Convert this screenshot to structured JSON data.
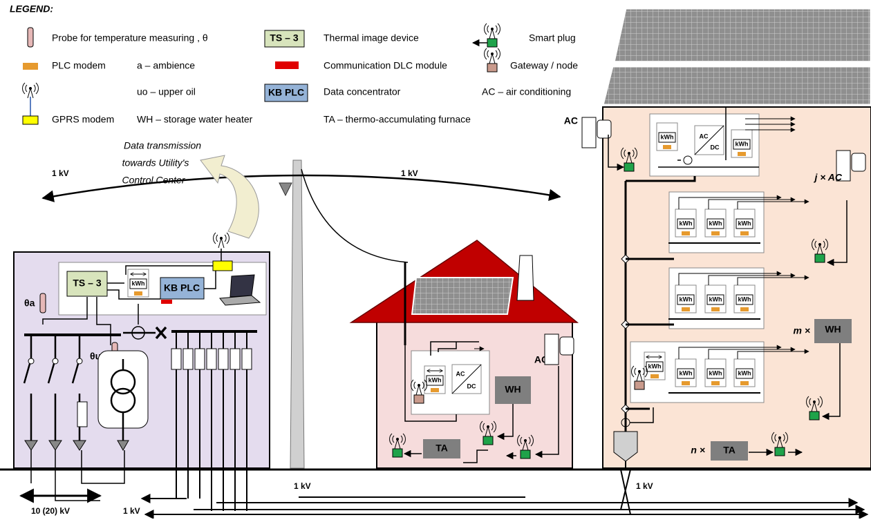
{
  "legend": {
    "title": "LEGEND:",
    "probe": "Probe for temperature measuring , θ",
    "ts3": "TS – 3",
    "thermal": "Thermal image device",
    "smart_plug": "Smart plug",
    "plc_modem": "PLC modem",
    "ambience": "a – ambience",
    "dlc": "Communication DLC module",
    "gateway": "Gateway / node",
    "upper_oil": "uo – upper oil",
    "kb_plc": "KB PLC",
    "concentrator": "Data concentrator",
    "ac": "AC – air conditioning",
    "gprs": "GPRS modem",
    "wh": "WH – storage water heater",
    "ta": "TA – thermo-accumulating furnace"
  },
  "diagram": {
    "callout": [
      "Data transmission",
      "towards Utility's",
      "Control Center"
    ],
    "voltages": [
      "1 kV",
      "1 kV",
      "1 kV",
      "1 kV",
      "1 kV",
      "10 (20) kV"
    ],
    "ts3": "TS – 3",
    "kb_plc": "KB PLC",
    "meter": "kWh",
    "theta_a": "θa",
    "theta_uo": "θuo",
    "ac": "AC",
    "dc": "DC",
    "wh": "WH",
    "ta": "TA",
    "j_ac": "j × AC",
    "m_x": "m ×",
    "n_x": "n ×"
  }
}
